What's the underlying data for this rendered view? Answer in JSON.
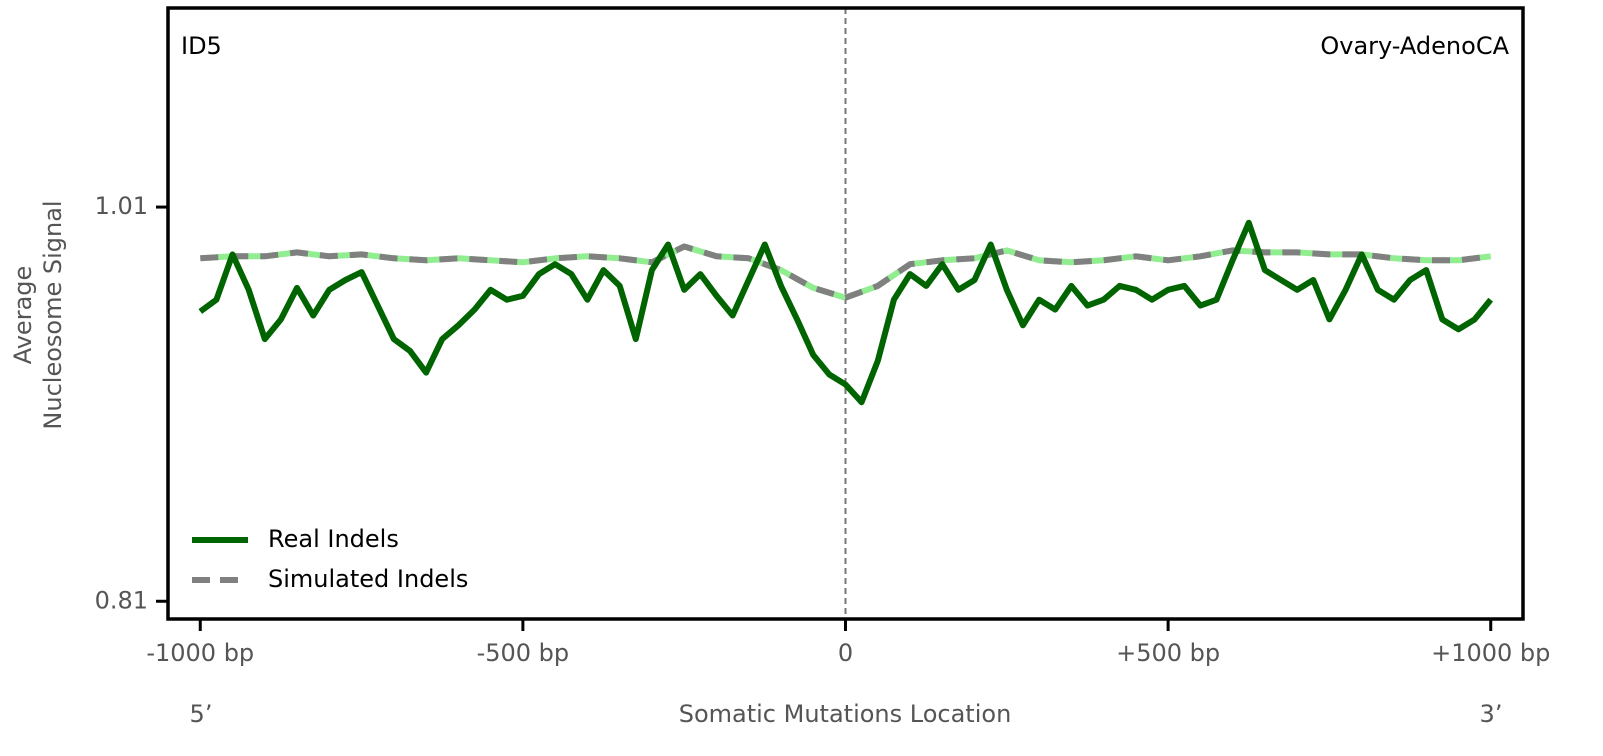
{
  "chart_data": {
    "type": "line",
    "title_left": "ID5",
    "title_right": "Ovary-AdenoCA",
    "xlabel": "Somatic Mutations Location",
    "ylabel": [
      "Average",
      "Nucleosome Signal"
    ],
    "x_left_note": "5’",
    "x_right_note": "3’",
    "xlim": [
      -1050,
      1050
    ],
    "xticks": [
      {
        "value": -1000,
        "label": "-1000 bp"
      },
      {
        "value": -500,
        "label": "-500 bp"
      },
      0,
      {
        "value": 500,
        "label": "+500 bp"
      },
      {
        "value": 1000,
        "label": "+1000 bp"
      }
    ],
    "ylim": [
      0.801,
      1.111
    ],
    "yticks": [
      0.81,
      1.01
    ],
    "vline": 0,
    "legend": "lower left",
    "series": [
      {
        "name": "Real Indels",
        "color": "#006400",
        "style": "solid",
        "x": [
          -1000,
          -975,
          -950,
          -925,
          -900,
          -875,
          -850,
          -825,
          -800,
          -775,
          -750,
          -725,
          -700,
          -675,
          -650,
          -625,
          -600,
          -575,
          -550,
          -525,
          -500,
          -475,
          -450,
          -425,
          -400,
          -375,
          -350,
          -325,
          -300,
          -275,
          -250,
          -225,
          -200,
          -175,
          -150,
          -125,
          -100,
          -75,
          -50,
          -25,
          0,
          25,
          50,
          75,
          100,
          125,
          150,
          175,
          200,
          225,
          250,
          275,
          300,
          325,
          350,
          375,
          400,
          425,
          450,
          475,
          500,
          525,
          550,
          575,
          600,
          625,
          650,
          675,
          700,
          725,
          750,
          775,
          800,
          825,
          850,
          875,
          900,
          925,
          950,
          975,
          1000
        ],
        "values": [
          0.957,
          0.963,
          0.986,
          0.968,
          0.943,
          0.953,
          0.969,
          0.955,
          0.968,
          0.973,
          0.977,
          0.96,
          0.943,
          0.937,
          0.926,
          0.943,
          0.95,
          0.958,
          0.968,
          0.963,
          0.965,
          0.976,
          0.981,
          0.976,
          0.963,
          0.978,
          0.97,
          0.943,
          0.978,
          0.991,
          0.968,
          0.976,
          0.965,
          0.955,
          0.973,
          0.991,
          0.97,
          0.953,
          0.935,
          0.925,
          0.92,
          0.911,
          0.932,
          0.963,
          0.976,
          0.97,
          0.981,
          0.968,
          0.973,
          0.991,
          0.968,
          0.95,
          0.963,
          0.958,
          0.97,
          0.96,
          0.963,
          0.97,
          0.968,
          0.963,
          0.968,
          0.97,
          0.96,
          0.963,
          0.983,
          1.002,
          0.978,
          0.973,
          0.968,
          0.973,
          0.953,
          0.968,
          0.986,
          0.968,
          0.963,
          0.973,
          0.978,
          0.953,
          0.948,
          0.953,
          0.963
        ]
      },
      {
        "name": "Simulated Indels",
        "color": "#808080",
        "underlay_color": "#90ee90",
        "style": "dashed",
        "x": [
          -1000,
          -950,
          -900,
          -850,
          -800,
          -750,
          -700,
          -650,
          -600,
          -550,
          -500,
          -450,
          -400,
          -350,
          -300,
          -250,
          -200,
          -150,
          -100,
          -50,
          0,
          50,
          100,
          150,
          200,
          250,
          300,
          350,
          400,
          450,
          500,
          550,
          600,
          650,
          700,
          750,
          800,
          850,
          900,
          950,
          1000
        ],
        "values": [
          0.984,
          0.985,
          0.985,
          0.987,
          0.985,
          0.986,
          0.984,
          0.983,
          0.984,
          0.983,
          0.982,
          0.984,
          0.985,
          0.984,
          0.982,
          0.99,
          0.985,
          0.984,
          0.978,
          0.969,
          0.964,
          0.97,
          0.981,
          0.983,
          0.984,
          0.988,
          0.983,
          0.982,
          0.983,
          0.985,
          0.983,
          0.985,
          0.988,
          0.987,
          0.987,
          0.986,
          0.986,
          0.984,
          0.983,
          0.983,
          0.985
        ]
      }
    ]
  }
}
